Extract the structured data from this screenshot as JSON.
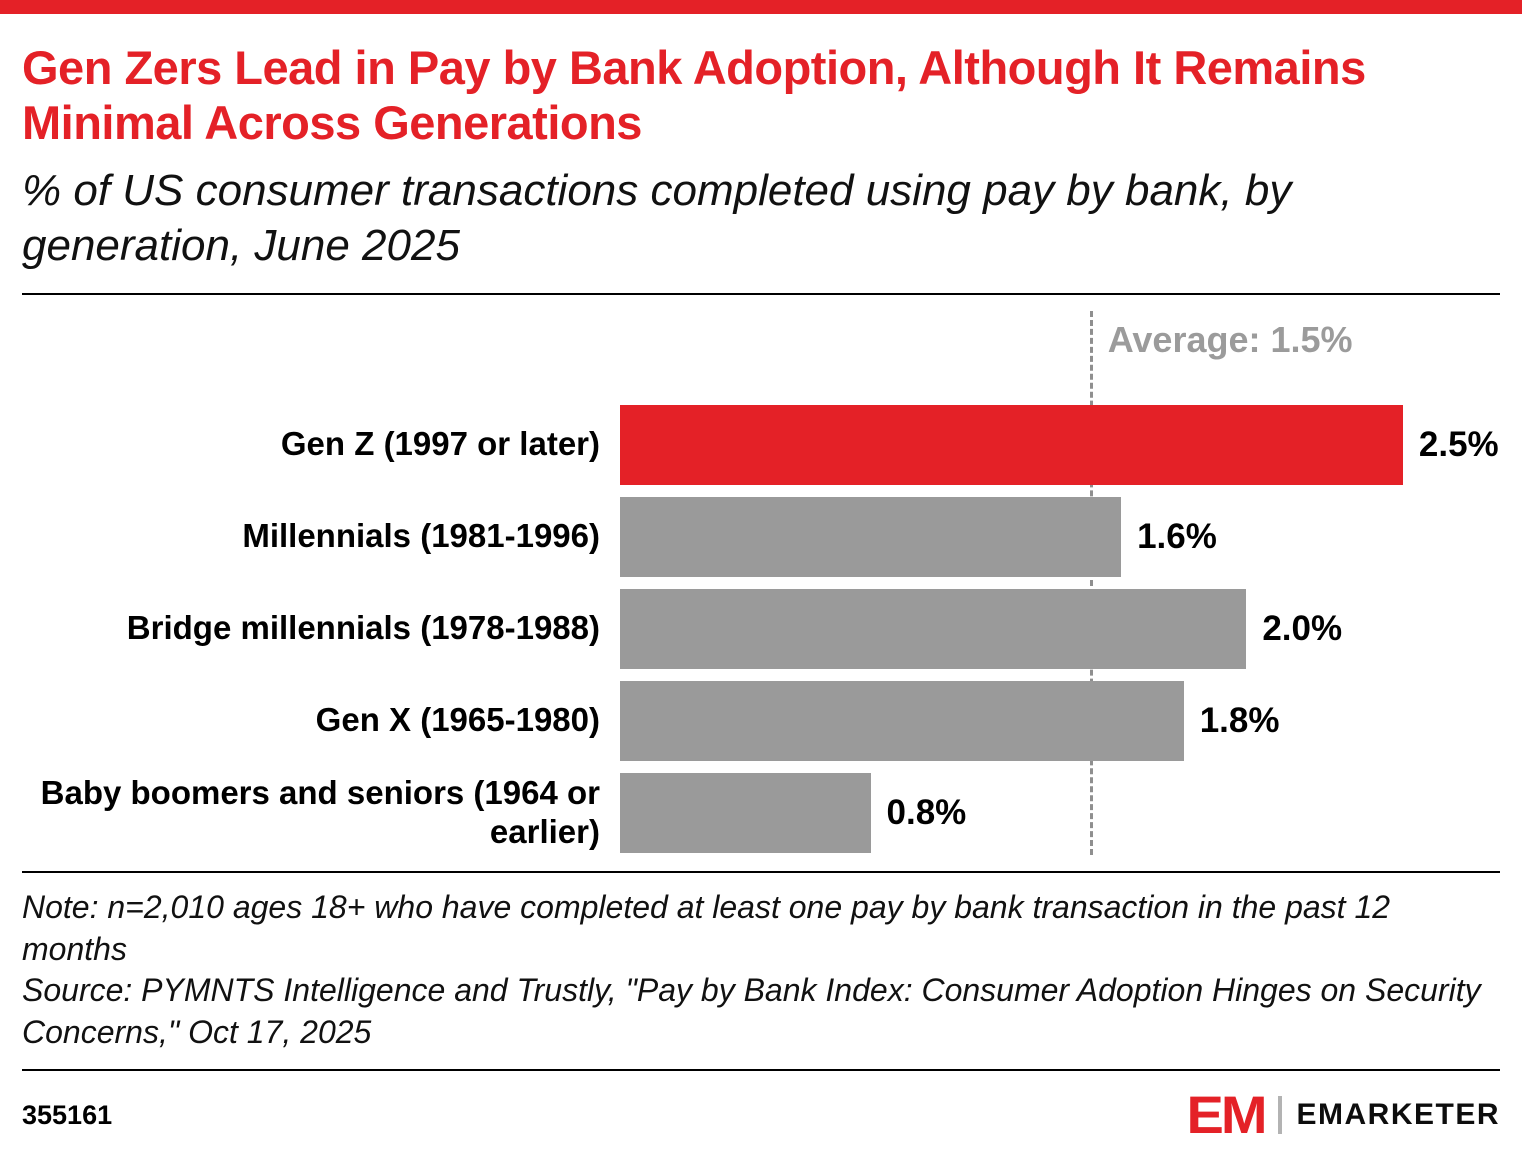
{
  "header": {
    "title": "Gen Zers Lead in Pay by Bank Adoption, Although It Remains Minimal Across Generations",
    "subtitle": "% of US consumer transactions completed using pay by bank, by generation, June 2025"
  },
  "chart_data": {
    "type": "bar",
    "orientation": "horizontal",
    "title": "Gen Zers Lead in Pay by Bank Adoption, Although It Remains Minimal Across Generations",
    "subtitle": "% of US consumer transactions completed using pay by bank, by generation, June 2025",
    "categories": [
      "Gen Z (1997 or later)",
      "Millennials (1981-1996)",
      "Bridge millennials (1978-1988)",
      "Gen X (1965-1980)",
      "Baby boomers and seniors (1964 or earlier)"
    ],
    "values": [
      2.5,
      1.6,
      2.0,
      1.8,
      0.8
    ],
    "value_labels": [
      "2.5%",
      "1.6%",
      "2.0%",
      "1.8%",
      "0.8%"
    ],
    "colors": [
      "#e42127",
      "#9a9a9a",
      "#9a9a9a",
      "#9a9a9a",
      "#9a9a9a"
    ],
    "average": 1.5,
    "average_label": "Average: 1.5%",
    "xlim": [
      0,
      2.81
    ],
    "grid": false,
    "legend": "none"
  },
  "notes": {
    "note": "Note: n=2,010 ages 18+ who have completed at least one pay by bank transaction in the past 12 months",
    "source": "Source: PYMNTS Intelligence and Trustly, \"Pay by Bank Index: Consumer Adoption Hinges on Security Concerns,\" Oct 17, 2025"
  },
  "footer": {
    "chart_id": "355161",
    "logo_em": "EM",
    "logo_text": "EMARKETER"
  }
}
